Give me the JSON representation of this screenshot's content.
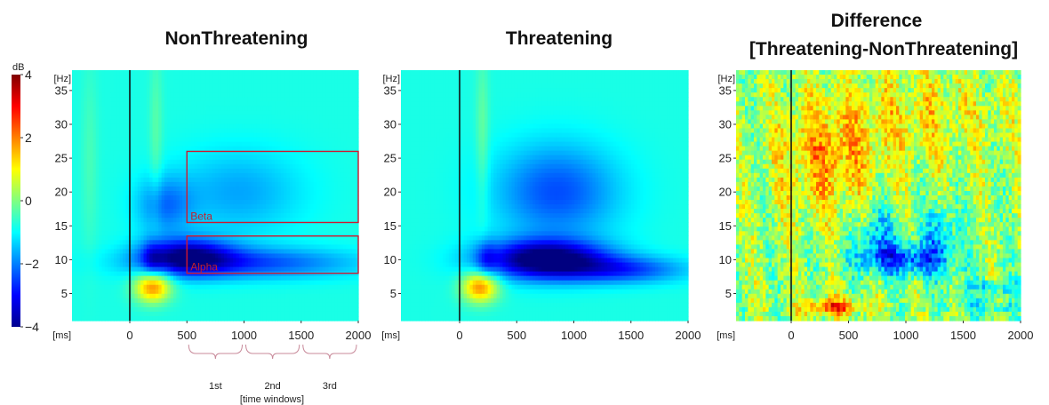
{
  "colorbar": {
    "unit": "dB",
    "ticks": [
      4,
      2,
      0,
      -2,
      -4
    ],
    "tick_labels": [
      "4",
      "2",
      "0",
      "−2",
      "−4"
    ],
    "range": [
      -4,
      4
    ],
    "colormap": "jet"
  },
  "panels": [
    {
      "title_lines": [
        "NonThreatening"
      ],
      "y_unit": "[Hz]",
      "x_unit": "[ms]",
      "x_ticks": [
        0,
        500,
        1000,
        1500,
        2000
      ],
      "y_ticks": [
        5,
        10,
        15,
        20,
        25,
        30,
        35
      ]
    },
    {
      "title_lines": [
        "Threatening"
      ],
      "y_unit": "[Hz]",
      "x_unit": "[ms]",
      "x_ticks": [
        0,
        500,
        1000,
        1500,
        2000
      ],
      "y_ticks": [
        5,
        10,
        15,
        20,
        25,
        30,
        35
      ]
    },
    {
      "title_lines": [
        "Difference",
        "[Threatening-NonThreatening]"
      ],
      "y_unit": "[Hz]",
      "x_unit": "[ms]",
      "x_ticks": [
        0,
        500,
        1000,
        1500,
        2000
      ],
      "y_ticks": [
        5,
        10,
        15,
        20,
        25,
        30,
        35
      ]
    }
  ],
  "rois": [
    {
      "label": "Beta",
      "x_range": [
        500,
        2000
      ],
      "y_range": [
        15.5,
        26
      ]
    },
    {
      "label": "Alpha",
      "x_range": [
        500,
        2000
      ],
      "y_range": [
        8,
        13.5
      ]
    }
  ],
  "time_windows": {
    "labels": [
      "1st",
      "2nd",
      "3rd"
    ],
    "caption": "[time windows]",
    "bounds": [
      [
        500,
        1000
      ],
      [
        1000,
        1500
      ],
      [
        1500,
        2000
      ]
    ]
  },
  "chart_data": [
    {
      "type": "heatmap",
      "title": "NonThreatening",
      "xlabel": "[ms]",
      "ylabel": "[Hz]",
      "xlim": [
        -500,
        2000
      ],
      "ylim": [
        1,
        38
      ],
      "zlim": [
        -4,
        4
      ],
      "features": [
        {
          "x": 200,
          "y": 6,
          "value": 2.5
        },
        {
          "x": 500,
          "y": 10,
          "value": -2.5
        },
        {
          "x": 900,
          "y": 20,
          "value": -1.2
        }
      ]
    },
    {
      "type": "heatmap",
      "title": "Threatening",
      "xlabel": "[ms]",
      "ylabel": "[Hz]",
      "xlim": [
        -500,
        2000
      ],
      "ylim": [
        1,
        38
      ],
      "zlim": [
        -4,
        4
      ],
      "features": [
        {
          "x": 180,
          "y": 6,
          "value": 2.5
        },
        {
          "x": 800,
          "y": 10,
          "value": -3.5
        },
        {
          "x": 900,
          "y": 20,
          "value": -1.5
        }
      ]
    },
    {
      "type": "heatmap",
      "title": "Difference [Threatening-NonThreatening]",
      "xlabel": "[ms]",
      "ylabel": "[Hz]",
      "xlim": [
        -500,
        2000
      ],
      "ylim": [
        1,
        38
      ],
      "zlim": [
        -4,
        4
      ],
      "features": [
        {
          "x": 350,
          "y": 3,
          "value": 2.5
        },
        {
          "x": 1000,
          "y": 10,
          "value": -2.5
        },
        {
          "x": 300,
          "y": 25,
          "value": 1.5
        }
      ]
    }
  ]
}
